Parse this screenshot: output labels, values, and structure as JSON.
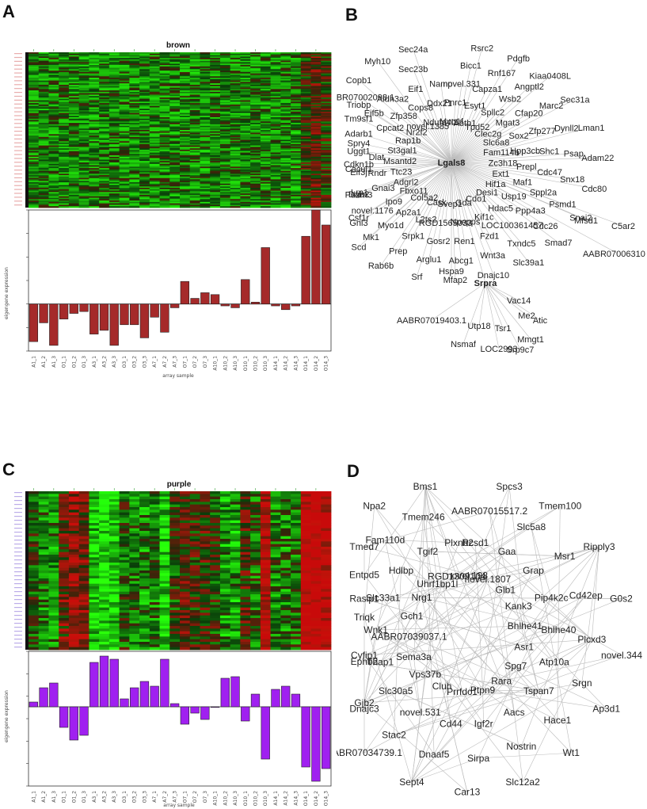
{
  "panels": {
    "A": {
      "letter": "A",
      "heatmap_title": "brown",
      "xlabel": "array sample",
      "ylabel": "eigengene expression"
    },
    "B": {
      "letter": "B"
    },
    "C": {
      "letter": "C",
      "heatmap_title": "purple",
      "xlabel": "array sample",
      "ylabel": "eigengene expression"
    },
    "D": {
      "letter": "D"
    }
  },
  "colors": {
    "brown_bar": "#a52a2a",
    "purple_bar": "#a020f0",
    "heat_green": "#1f8f1f",
    "heat_red": "#8b1010",
    "edge": "#bbbbbb"
  },
  "chart_data": [
    {
      "type": "bar",
      "panel": "A",
      "title": "brown",
      "xlabel": "array sample",
      "ylabel": "eigengene expression",
      "categories": [
        "A1_1",
        "A1_2",
        "A1_3",
        "O1_1",
        "O1_2",
        "O1_3",
        "A3_1",
        "A3_2",
        "A3_3",
        "O3_1",
        "O3_2",
        "O3_3",
        "A7_1",
        "A7_2",
        "A7_3",
        "O7_1",
        "O7_2",
        "O7_3",
        "A10_1",
        "A10_2",
        "A10_3",
        "O10_1",
        "O10_2",
        "O10_3",
        "A14_1",
        "A14_2",
        "A14_3",
        "O14_1",
        "O14_2",
        "O14_3"
      ],
      "values": [
        -0.2,
        -0.1,
        -0.22,
        -0.08,
        -0.05,
        -0.04,
        -0.16,
        -0.14,
        -0.22,
        -0.11,
        -0.11,
        -0.18,
        -0.07,
        -0.15,
        -0.02,
        0.12,
        0.03,
        0.06,
        0.05,
        -0.01,
        -0.02,
        0.13,
        0.01,
        0.3,
        -0.01,
        -0.03,
        -0.01,
        0.36,
        0.5,
        0.42
      ],
      "ylim": [
        -0.25,
        0.5
      ]
    },
    {
      "type": "bar",
      "panel": "C",
      "title": "purple",
      "xlabel": "array sample",
      "ylabel": "eigengene expression",
      "categories": [
        "A1_1",
        "A1_2",
        "A1_3",
        "O1_1",
        "O1_2",
        "O1_3",
        "A3_1",
        "A3_2",
        "A3_3",
        "O3_1",
        "O3_2",
        "O3_3",
        "A7_1",
        "A7_2",
        "A7_3",
        "O7_1",
        "O7_2",
        "O7_3",
        "A10_1",
        "A10_2",
        "A10_3",
        "O10_1",
        "O10_2",
        "O10_3",
        "A14_1",
        "A14_2",
        "A14_3",
        "O14_1",
        "O14_2",
        "O14_3"
      ],
      "values": [
        0.03,
        0.12,
        0.15,
        -0.13,
        -0.21,
        -0.18,
        0.28,
        0.32,
        0.3,
        0.05,
        0.12,
        0.16,
        0.13,
        0.3,
        0.02,
        -0.11,
        -0.04,
        -0.08,
        0.0,
        0.18,
        0.19,
        -0.09,
        0.08,
        -0.33,
        0.11,
        0.13,
        0.08,
        -0.38,
        -0.47,
        -0.39
      ],
      "ylim": [
        -0.5,
        0.35
      ]
    }
  ],
  "networks": {
    "B": {
      "hubs": [
        {
          "id": "Lgals8",
          "label": "Lgals8"
        },
        {
          "id": "Srpra",
          "label": "Srpra"
        }
      ],
      "nodes": [
        {
          "l": "Myo1f",
          "h": 0
        },
        {
          "l": "Pnrc1",
          "h": 0
        },
        {
          "l": "novel.331",
          "h": 0
        },
        {
          "l": "Bicc1",
          "h": 0
        },
        {
          "l": "Rsrc2",
          "h": 0
        },
        {
          "l": "Abtb1",
          "h": 0
        },
        {
          "l": "Esyt1",
          "h": 0
        },
        {
          "l": "Capza1",
          "h": 0
        },
        {
          "l": "Rnf167",
          "h": 0
        },
        {
          "l": "Pdgfb",
          "h": 0
        },
        {
          "l": "Tpd52",
          "h": 0
        },
        {
          "l": "Spllc2",
          "h": 0
        },
        {
          "l": "Wsb2",
          "h": 0
        },
        {
          "l": "Angptl2",
          "h": 0
        },
        {
          "l": "Kiaa0408L",
          "h": 0
        },
        {
          "l": "Clec2g",
          "h": 0
        },
        {
          "l": "Mgat3",
          "h": 0
        },
        {
          "l": "Cfap20",
          "h": 0
        },
        {
          "l": "Marc2",
          "h": 0
        },
        {
          "l": "Sec31a",
          "h": 0
        },
        {
          "l": "Slc6a8",
          "h": 0
        },
        {
          "l": "Sox2",
          "h": 0
        },
        {
          "l": "Zfp277",
          "h": 0
        },
        {
          "l": "Dynll2",
          "h": 0
        },
        {
          "l": "Lman1",
          "h": 0
        },
        {
          "l": "Fam114a",
          "h": 0
        },
        {
          "l": "Hpp3cb",
          "h": 0
        },
        {
          "l": "Shc1",
          "h": 0
        },
        {
          "l": "Psap",
          "h": 0
        },
        {
          "l": "Adam22",
          "h": 0
        },
        {
          "l": "Zc3h18",
          "h": 0
        },
        {
          "l": "Prepl",
          "h": 0
        },
        {
          "l": "Cdc47",
          "h": 0
        },
        {
          "l": "Snx18",
          "h": 0
        },
        {
          "l": "Cdc80",
          "h": 0
        },
        {
          "l": "Ext1",
          "h": 0
        },
        {
          "l": "Maf1",
          "h": 0
        },
        {
          "l": "Sppl2a",
          "h": 0
        },
        {
          "l": "Psmd1",
          "h": 0
        },
        {
          "l": "Snai2",
          "h": 0
        },
        {
          "l": "Hif1a",
          "h": 0
        },
        {
          "l": "Usp19",
          "h": 0
        },
        {
          "l": "Ppp4a3",
          "h": 0
        },
        {
          "l": "Cdc26",
          "h": 0
        },
        {
          "l": "Smad7",
          "h": 0
        },
        {
          "l": "Desi1",
          "h": 0
        },
        {
          "l": "Hdac5",
          "h": 0
        },
        {
          "l": "LOC100361457",
          "h": 0
        },
        {
          "l": "Txndc5",
          "h": 0
        },
        {
          "l": "Slc39a1",
          "h": 0
        },
        {
          "l": "Cdo1",
          "h": 0
        },
        {
          "l": "Kif1c",
          "h": 0
        },
        {
          "l": "Fzd1",
          "h": 0
        },
        {
          "l": "Wnt3a",
          "h": 0
        },
        {
          "l": "Dnajc10",
          "h": 0
        },
        {
          "l": "Gda",
          "h": 0
        },
        {
          "l": "Npepps",
          "h": 0
        },
        {
          "l": "Ren1",
          "h": 0
        },
        {
          "l": "Abcg1",
          "h": 0
        },
        {
          "l": "Mfap2",
          "h": 0
        },
        {
          "l": "Svep1",
          "h": 0
        },
        {
          "l": "RGD1565033",
          "h": 0
        },
        {
          "l": "Gosr2",
          "h": 0
        },
        {
          "l": "Arglu1",
          "h": 0
        },
        {
          "l": "Srf",
          "h": 0
        },
        {
          "l": "Cask",
          "h": 0
        },
        {
          "l": "L2ts2",
          "h": 0
        },
        {
          "l": "Srpk1",
          "h": 0
        },
        {
          "l": "Prep",
          "h": 0
        },
        {
          "l": "Rab6b",
          "h": 0
        },
        {
          "l": "Col5a2",
          "h": 0
        },
        {
          "l": "Ap2a1",
          "h": 0
        },
        {
          "l": "Myo1d",
          "h": 0
        },
        {
          "l": "Mk1",
          "h": 0
        },
        {
          "l": "Scd",
          "h": 0
        },
        {
          "l": "Fbxo11",
          "h": 0
        },
        {
          "l": "Ipo9",
          "h": 0
        },
        {
          "l": "novel.1176",
          "h": 0
        },
        {
          "l": "Csf1r",
          "h": 0
        },
        {
          "l": "Gnl3",
          "h": 0
        },
        {
          "l": "Adgrl2",
          "h": 0
        },
        {
          "l": "Gnai3",
          "h": 0
        },
        {
          "l": "Lrp1",
          "h": 0
        },
        {
          "l": "Dab2",
          "h": 0
        },
        {
          "l": "Pdzrn3",
          "h": 0
        },
        {
          "l": "Ttc23",
          "h": 0
        },
        {
          "l": "Rndr",
          "h": 0
        },
        {
          "l": "Eif3j",
          "h": 0
        },
        {
          "l": "Cacul1",
          "h": 0
        },
        {
          "l": "Cdkn1b",
          "h": 0
        },
        {
          "l": "Msantd2",
          "h": 0
        },
        {
          "l": "Dlat",
          "h": 0
        },
        {
          "l": "Uggt1",
          "h": 0
        },
        {
          "l": "Spry4",
          "h": 0
        },
        {
          "l": "Adarb1",
          "h": 0
        },
        {
          "l": "St3gal1",
          "h": 0
        },
        {
          "l": "Mfsd1",
          "h": 0
        },
        {
          "l": "C5ar2",
          "h": 0
        },
        {
          "l": "Tm9sf1",
          "h": 0
        },
        {
          "l": "Triobp",
          "h": 0
        },
        {
          "l": "Rap1b",
          "h": 0
        },
        {
          "l": "Cpcat2",
          "h": 0
        },
        {
          "l": "Eif5b",
          "h": 0
        },
        {
          "l": "AABR07002098.1",
          "h": 0
        },
        {
          "l": "Copb1",
          "h": 0
        },
        {
          "l": "Nr2f2",
          "h": 0
        },
        {
          "l": "Zfp358",
          "h": 0
        },
        {
          "l": "Aldh3a2",
          "h": 0
        },
        {
          "l": "AABR07006310.1",
          "h": 0
        },
        {
          "l": "Myh10",
          "h": 0
        },
        {
          "l": "novel.1385",
          "h": 0
        },
        {
          "l": "Cops8",
          "h": 0
        },
        {
          "l": "Eif1",
          "h": 0
        },
        {
          "l": "Sec23b",
          "h": 0
        },
        {
          "l": "Sec24a",
          "h": 0
        },
        {
          "l": "Ndufa4l2",
          "h": 0
        },
        {
          "l": "Ddx21",
          "h": 0
        },
        {
          "l": "Namp",
          "h": 0
        },
        {
          "l": "Hspa9",
          "h": 0
        },
        {
          "l": "Vac14",
          "h": 1
        },
        {
          "l": "AABR07019403.1",
          "h": 1
        },
        {
          "l": "Me2",
          "h": 1
        },
        {
          "l": "Atic",
          "h": 1
        },
        {
          "l": "Utp18",
          "h": 1
        },
        {
          "l": "Tsr1",
          "h": 1
        },
        {
          "l": "Nsmaf",
          "h": 1
        },
        {
          "l": "Mmgt1",
          "h": 1
        },
        {
          "l": "LOC2993",
          "h": 1
        },
        {
          "l": "Srp9c7",
          "h": 1
        }
      ]
    },
    "D": {
      "nodes": [
        {
          "l": "novel.198"
        },
        {
          "l": "Rcsd1"
        },
        {
          "l": "AABR07015517.2"
        },
        {
          "l": "Spcs3"
        },
        {
          "l": "novel.1807"
        },
        {
          "l": "Gaa"
        },
        {
          "l": "Slc5a8"
        },
        {
          "l": "Tmem100"
        },
        {
          "l": "Glb1"
        },
        {
          "l": "Grap"
        },
        {
          "l": "Msr1"
        },
        {
          "l": "Ripply3"
        },
        {
          "l": "Kank3"
        },
        {
          "l": "Pip4k2c"
        },
        {
          "l": "Cd42ep"
        },
        {
          "l": "G0s2"
        },
        {
          "l": "Bhlhe41"
        },
        {
          "l": "Bhlhe40"
        },
        {
          "l": "Plcxd3"
        },
        {
          "l": "novel.344"
        },
        {
          "l": "Asr1"
        },
        {
          "l": "Atp10a"
        },
        {
          "l": "Srgn"
        },
        {
          "l": "Ap3d1"
        },
        {
          "l": "Spg7"
        },
        {
          "l": "Tspan7"
        },
        {
          "l": "Hace1"
        },
        {
          "l": "Wt1"
        },
        {
          "l": "Rara"
        },
        {
          "l": "Aacs"
        },
        {
          "l": "Nostrin"
        },
        {
          "l": "Slc12a2"
        },
        {
          "l": "Ptpn9"
        },
        {
          "l": "Igf2r"
        },
        {
          "l": "Sirpa"
        },
        {
          "l": "Car13"
        },
        {
          "l": "Prrfdc1"
        },
        {
          "l": "Cd44"
        },
        {
          "l": "Dnaaf5"
        },
        {
          "l": "Sept4"
        },
        {
          "l": "Cluh"
        },
        {
          "l": "novel.531"
        },
        {
          "l": "Stac2"
        },
        {
          "l": "AABR07034739.1"
        },
        {
          "l": "Vps37b"
        },
        {
          "l": "Slc30a5"
        },
        {
          "l": "Gjb2"
        },
        {
          "l": "Dnajc3"
        },
        {
          "l": "Sema3a"
        },
        {
          "l": "Thap1"
        },
        {
          "l": "Ephb2"
        },
        {
          "l": "Cyfip1"
        },
        {
          "l": "AABR07039037.1"
        },
        {
          "l": "Wnk1"
        },
        {
          "l": "Triqk"
        },
        {
          "l": "Rasip1"
        },
        {
          "l": "Gch1"
        },
        {
          "l": "Slc33a1"
        },
        {
          "l": "Entpd5"
        },
        {
          "l": "Tmed7"
        },
        {
          "l": "Nrg1"
        },
        {
          "l": "Hdlbp"
        },
        {
          "l": "Fam110d"
        },
        {
          "l": "Npa2"
        },
        {
          "l": "Uhrf1bp1l"
        },
        {
          "l": "Tgif2"
        },
        {
          "l": "Tmem246"
        },
        {
          "l": "Bms1"
        },
        {
          "l": "RGD1309104"
        },
        {
          "l": "Plxnb2"
        }
      ]
    }
  }
}
